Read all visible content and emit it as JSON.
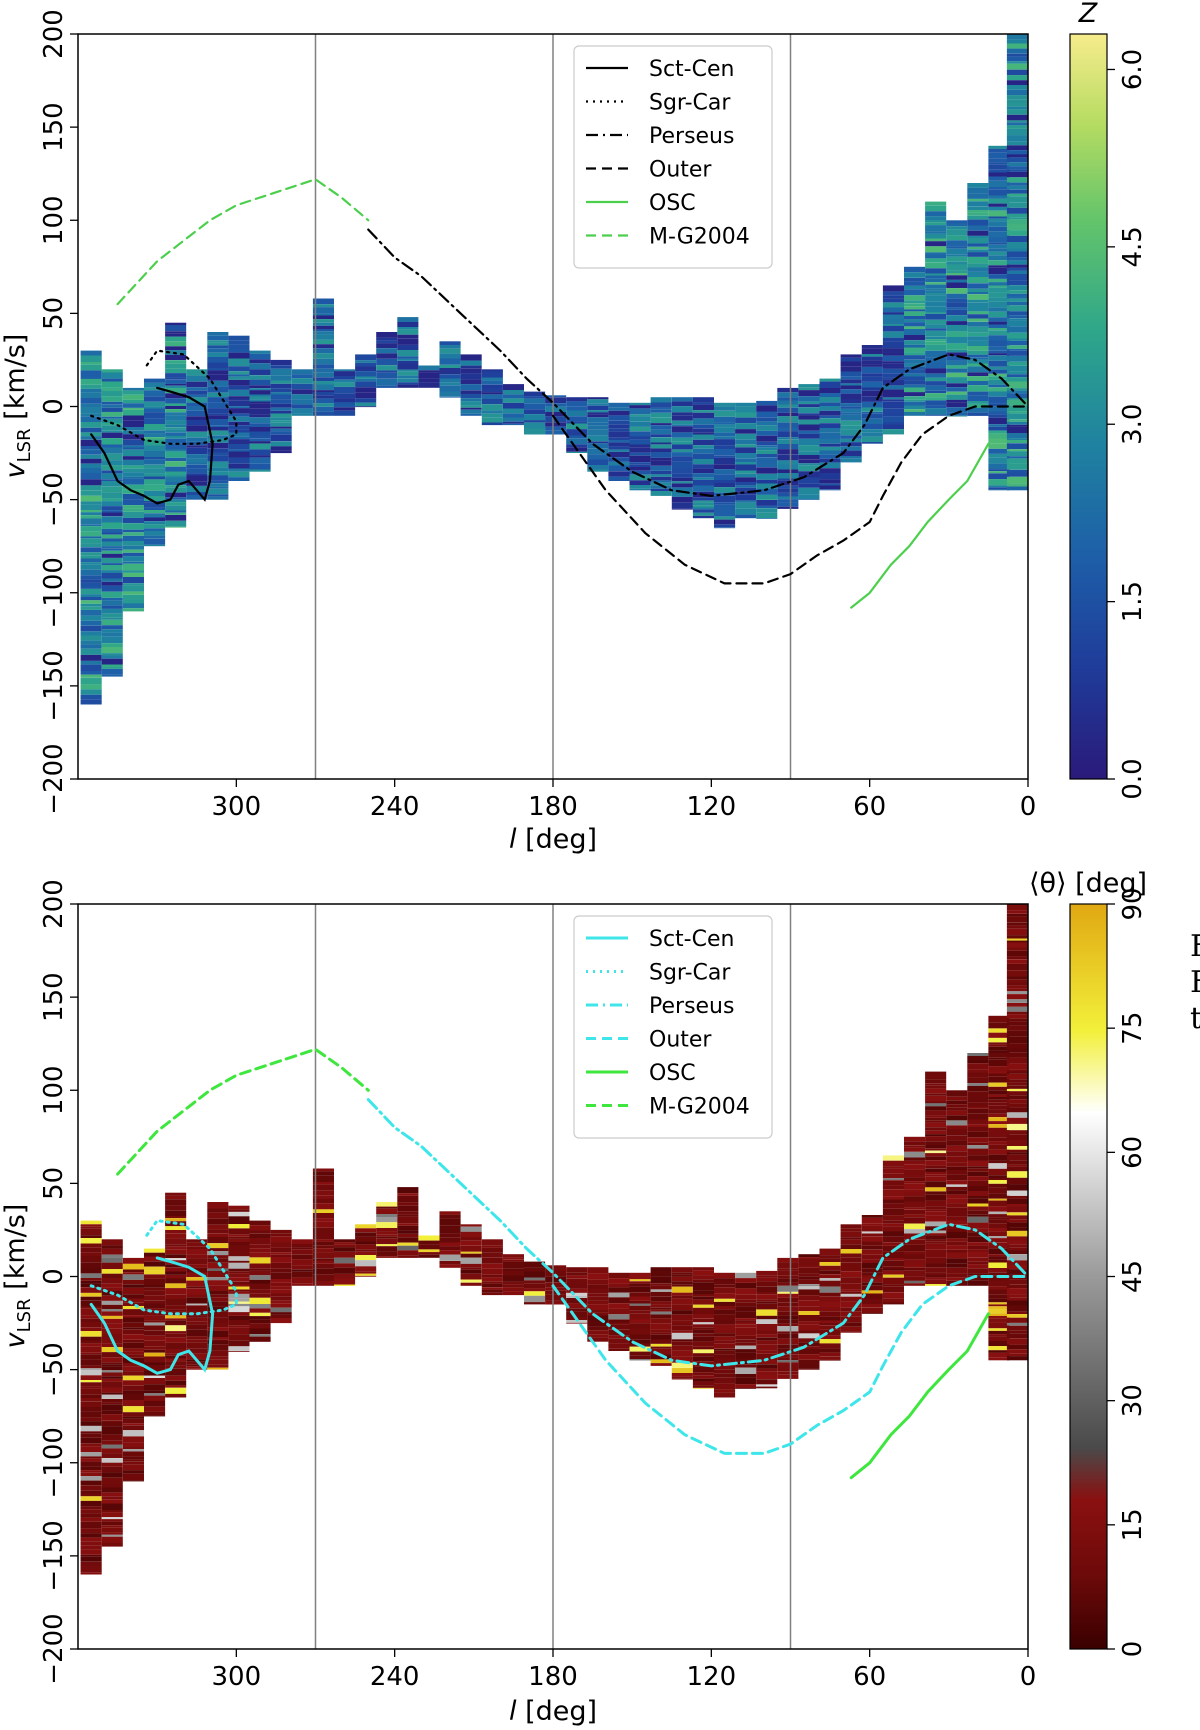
{
  "chart_data": [
    {
      "type": "heatmap",
      "panel": "top",
      "xlabel": "l [deg]",
      "ylabel": "v_LSR [km/s]",
      "xlim": [
        360,
        0
      ],
      "ylim": [
        -200,
        200
      ],
      "x_ticks": [
        300,
        240,
        180,
        120,
        60,
        0
      ],
      "y_ticks": [
        200,
        150,
        100,
        50,
        0,
        -50,
        -100,
        -150,
        -200
      ],
      "x_tick_labels": [
        "300",
        "240",
        "180",
        "120",
        "60",
        "0"
      ],
      "y_tick_labels": [
        "200",
        "150",
        "100",
        "50",
        "0",
        "−50",
        "−100",
        "−150",
        "−200"
      ],
      "vertical_lines": [
        270,
        180,
        90
      ],
      "colorbar": {
        "label": "Z",
        "range": [
          0.0,
          6.3
        ],
        "ticks": [
          0.0,
          1.5,
          3.0,
          4.5,
          6.0
        ],
        "tick_labels": [
          "0.0",
          "1.5",
          "3.0",
          "4.5",
          "6.0"
        ],
        "cmap": "viridis-like"
      },
      "legend_position": "top-center",
      "series": [
        {
          "name": "Sct-Cen",
          "style": "solid",
          "color": "#000000",
          "points": [
            [
              355,
              -15
            ],
            [
              350,
              -25
            ],
            [
              345,
              -40
            ],
            [
              340,
              -45
            ],
            [
              335,
              -48
            ],
            [
              330,
              -52
            ],
            [
              325,
              -50
            ],
            [
              322,
              -42
            ],
            [
              318,
              -40
            ],
            [
              315,
              -45
            ],
            [
              312,
              -50
            ],
            [
              310,
              -40
            ],
            [
              309,
              -20
            ],
            [
              312,
              0
            ],
            [
              318,
              5
            ],
            [
              325,
              8
            ],
            [
              330,
              10
            ]
          ]
        },
        {
          "name": "Sgr-Car",
          "style": "dotted",
          "color": "#000000",
          "points": [
            [
              355,
              -5
            ],
            [
              345,
              -10
            ],
            [
              335,
              -18
            ],
            [
              325,
              -20
            ],
            [
              315,
              -20
            ],
            [
              305,
              -18
            ],
            [
              300,
              -15
            ],
            [
              300,
              -8
            ],
            [
              310,
              15
            ],
            [
              320,
              28
            ],
            [
              330,
              30
            ],
            [
              335,
              20
            ]
          ]
        },
        {
          "name": "Perseus",
          "style": "dashdot",
          "color": "#000000",
          "points": [
            [
              250,
              95
            ],
            [
              240,
              80
            ],
            [
              230,
              70
            ],
            [
              215,
              50
            ],
            [
              200,
              30
            ],
            [
              190,
              15
            ],
            [
              180,
              2
            ],
            [
              165,
              -20
            ],
            [
              150,
              -35
            ],
            [
              135,
              -45
            ],
            [
              120,
              -48
            ],
            [
              100,
              -45
            ],
            [
              85,
              -38
            ],
            [
              70,
              -25
            ],
            [
              62,
              -10
            ],
            [
              55,
              10
            ],
            [
              45,
              20
            ],
            [
              30,
              28
            ],
            [
              20,
              25
            ],
            [
              10,
              15
            ],
            [
              0,
              0
            ]
          ]
        },
        {
          "name": "Outer",
          "style": "dashed",
          "color": "#000000",
          "points": [
            [
              180,
              -5
            ],
            [
              170,
              -25
            ],
            [
              160,
              -45
            ],
            [
              145,
              -68
            ],
            [
              130,
              -85
            ],
            [
              115,
              -95
            ],
            [
              100,
              -95
            ],
            [
              90,
              -90
            ],
            [
              80,
              -80
            ],
            [
              70,
              -72
            ],
            [
              60,
              -62
            ],
            [
              55,
              -48
            ],
            [
              48,
              -30
            ],
            [
              40,
              -15
            ],
            [
              30,
              -5
            ],
            [
              20,
              0
            ],
            [
              10,
              0
            ],
            [
              0,
              0
            ]
          ]
        },
        {
          "name": "OSC",
          "style": "solid",
          "color": "#4ccf4c",
          "points": [
            [
              67,
              -108
            ],
            [
              60,
              -100
            ],
            [
              52,
              -85
            ],
            [
              45,
              -75
            ],
            [
              38,
              -62
            ],
            [
              30,
              -50
            ],
            [
              23,
              -40
            ],
            [
              15,
              -20
            ]
          ]
        },
        {
          "name": "M-G2004",
          "style": "dashed",
          "color": "#4ccf4c",
          "points": [
            [
              345,
              55
            ],
            [
              330,
              78
            ],
            [
              310,
              100
            ],
            [
              300,
              108
            ],
            [
              285,
              115
            ],
            [
              270,
              122
            ],
            [
              260,
              112
            ],
            [
              250,
              100
            ]
          ]
        }
      ]
    },
    {
      "type": "heatmap",
      "panel": "bottom",
      "xlabel": "l [deg]",
      "ylabel": "v_LSR [km/s]",
      "xlim": [
        360,
        0
      ],
      "ylim": [
        -200,
        200
      ],
      "x_ticks": [
        300,
        240,
        180,
        120,
        60,
        0
      ],
      "y_ticks": [
        200,
        150,
        100,
        50,
        0,
        -50,
        -100,
        -150,
        -200
      ],
      "x_tick_labels": [
        "300",
        "240",
        "180",
        "120",
        "60",
        "0"
      ],
      "y_tick_labels": [
        "200",
        "150",
        "100",
        "50",
        "0",
        "−50",
        "−100",
        "−150",
        "−200"
      ],
      "vertical_lines": [
        270,
        180,
        90
      ],
      "colorbar": {
        "label": "⟨θ⟩ [deg]",
        "range": [
          0,
          90
        ],
        "ticks": [
          0,
          15,
          30,
          45,
          60,
          75,
          90
        ],
        "tick_labels": [
          "0",
          "15",
          "30",
          "45",
          "60",
          "75",
          "90"
        ],
        "cmap": "dark-red-grey-white-yellow"
      },
      "legend_position": "top-center",
      "series": [
        {
          "name": "Sct-Cen",
          "style": "solid",
          "color": "#3ee6ea",
          "points": [
            [
              355,
              -15
            ],
            [
              350,
              -25
            ],
            [
              345,
              -40
            ],
            [
              340,
              -45
            ],
            [
              335,
              -48
            ],
            [
              330,
              -52
            ],
            [
              325,
              -50
            ],
            [
              322,
              -42
            ],
            [
              318,
              -40
            ],
            [
              315,
              -45
            ],
            [
              312,
              -50
            ],
            [
              310,
              -40
            ],
            [
              309,
              -20
            ],
            [
              312,
              0
            ],
            [
              318,
              5
            ],
            [
              325,
              8
            ],
            [
              330,
              10
            ]
          ]
        },
        {
          "name": "Sgr-Car",
          "style": "dotted",
          "color": "#3ee6ea",
          "points": [
            [
              355,
              -5
            ],
            [
              345,
              -10
            ],
            [
              335,
              -18
            ],
            [
              325,
              -20
            ],
            [
              315,
              -20
            ],
            [
              305,
              -18
            ],
            [
              300,
              -15
            ],
            [
              300,
              -8
            ],
            [
              310,
              15
            ],
            [
              320,
              28
            ],
            [
              330,
              30
            ],
            [
              335,
              20
            ]
          ]
        },
        {
          "name": "Perseus",
          "style": "dashdot",
          "color": "#3ee6ea",
          "points": [
            [
              250,
              95
            ],
            [
              240,
              80
            ],
            [
              230,
              70
            ],
            [
              215,
              50
            ],
            [
              200,
              30
            ],
            [
              190,
              15
            ],
            [
              180,
              2
            ],
            [
              165,
              -20
            ],
            [
              150,
              -35
            ],
            [
              135,
              -45
            ],
            [
              120,
              -48
            ],
            [
              100,
              -45
            ],
            [
              85,
              -38
            ],
            [
              70,
              -25
            ],
            [
              62,
              -10
            ],
            [
              55,
              10
            ],
            [
              45,
              20
            ],
            [
              30,
              28
            ],
            [
              20,
              25
            ],
            [
              10,
              15
            ],
            [
              0,
              0
            ]
          ]
        },
        {
          "name": "Outer",
          "style": "dashed",
          "color": "#3ee6ea",
          "points": [
            [
              180,
              -5
            ],
            [
              170,
              -25
            ],
            [
              160,
              -45
            ],
            [
              145,
              -68
            ],
            [
              130,
              -85
            ],
            [
              115,
              -95
            ],
            [
              100,
              -95
            ],
            [
              90,
              -90
            ],
            [
              80,
              -80
            ],
            [
              70,
              -72
            ],
            [
              60,
              -62
            ],
            [
              55,
              -48
            ],
            [
              48,
              -30
            ],
            [
              40,
              -15
            ],
            [
              30,
              -5
            ],
            [
              20,
              0
            ],
            [
              10,
              0
            ],
            [
              0,
              0
            ]
          ]
        },
        {
          "name": "OSC",
          "style": "solid",
          "color": "#3ee63e",
          "points": [
            [
              67,
              -108
            ],
            [
              60,
              -100
            ],
            [
              52,
              -85
            ],
            [
              45,
              -75
            ],
            [
              38,
              -62
            ],
            [
              30,
              -50
            ],
            [
              23,
              -40
            ],
            [
              15,
              -20
            ]
          ]
        },
        {
          "name": "M-G2004",
          "style": "dashed",
          "color": "#3ee63e",
          "points": [
            [
              345,
              55
            ],
            [
              330,
              78
            ],
            [
              310,
              100
            ],
            [
              300,
              108
            ],
            [
              285,
              115
            ],
            [
              270,
              122
            ],
            [
              260,
              112
            ],
            [
              250,
              100
            ]
          ]
        }
      ]
    }
  ],
  "heatmap_columns": [
    {
      "l": 355,
      "vmin": -160,
      "vmax": 30
    },
    {
      "l": 347,
      "vmin": -145,
      "vmax": 20
    },
    {
      "l": 339,
      "vmin": -110,
      "vmax": 10
    },
    {
      "l": 331,
      "vmin": -75,
      "vmax": 15
    },
    {
      "l": 323,
      "vmin": -65,
      "vmax": 45
    },
    {
      "l": 315,
      "vmin": -50,
      "vmax": 20
    },
    {
      "l": 307,
      "vmin": -50,
      "vmax": 40
    },
    {
      "l": 299,
      "vmin": -40,
      "vmax": 38
    },
    {
      "l": 291,
      "vmin": -35,
      "vmax": 30
    },
    {
      "l": 283,
      "vmin": -25,
      "vmax": 25
    },
    {
      "l": 275,
      "vmin": -5,
      "vmax": 20
    },
    {
      "l": 267,
      "vmin": -5,
      "vmax": 58
    },
    {
      "l": 259,
      "vmin": -5,
      "vmax": 20
    },
    {
      "l": 251,
      "vmin": 0,
      "vmax": 28
    },
    {
      "l": 243,
      "vmin": 10,
      "vmax": 40
    },
    {
      "l": 235,
      "vmin": 10,
      "vmax": 48
    },
    {
      "l": 227,
      "vmin": 10,
      "vmax": 22
    },
    {
      "l": 219,
      "vmin": 5,
      "vmax": 35
    },
    {
      "l": 211,
      "vmin": -5,
      "vmax": 28
    },
    {
      "l": 203,
      "vmin": -10,
      "vmax": 20
    },
    {
      "l": 195,
      "vmin": -10,
      "vmax": 12
    },
    {
      "l": 187,
      "vmin": -15,
      "vmax": 8
    },
    {
      "l": 179,
      "vmin": -15,
      "vmax": 6
    },
    {
      "l": 171,
      "vmin": -25,
      "vmax": 5
    },
    {
      "l": 163,
      "vmin": -35,
      "vmax": 5
    },
    {
      "l": 155,
      "vmin": -40,
      "vmax": 2
    },
    {
      "l": 147,
      "vmin": -45,
      "vmax": 2
    },
    {
      "l": 139,
      "vmin": -48,
      "vmax": 5
    },
    {
      "l": 131,
      "vmin": -55,
      "vmax": 5
    },
    {
      "l": 123,
      "vmin": -60,
      "vmax": 5
    },
    {
      "l": 115,
      "vmin": -65,
      "vmax": 2
    },
    {
      "l": 107,
      "vmin": -60,
      "vmax": 2
    },
    {
      "l": 99,
      "vmin": -60,
      "vmax": 3
    },
    {
      "l": 91,
      "vmin": -55,
      "vmax": 10
    },
    {
      "l": 83,
      "vmin": -50,
      "vmax": 12
    },
    {
      "l": 75,
      "vmin": -45,
      "vmax": 15
    },
    {
      "l": 67,
      "vmin": -30,
      "vmax": 28
    },
    {
      "l": 59,
      "vmin": -20,
      "vmax": 33
    },
    {
      "l": 51,
      "vmin": -15,
      "vmax": 65
    },
    {
      "l": 43,
      "vmin": -5,
      "vmax": 75
    },
    {
      "l": 35,
      "vmin": -5,
      "vmax": 110
    },
    {
      "l": 27,
      "vmin": -5,
      "vmax": 100
    },
    {
      "l": 19,
      "vmin": -5,
      "vmax": 120
    },
    {
      "l": 11,
      "vmin": -45,
      "vmax": 140
    },
    {
      "l": 4,
      "vmin": -45,
      "vmax": 200
    }
  ],
  "right_text_fragments": [
    "F",
    "F",
    "t"
  ]
}
